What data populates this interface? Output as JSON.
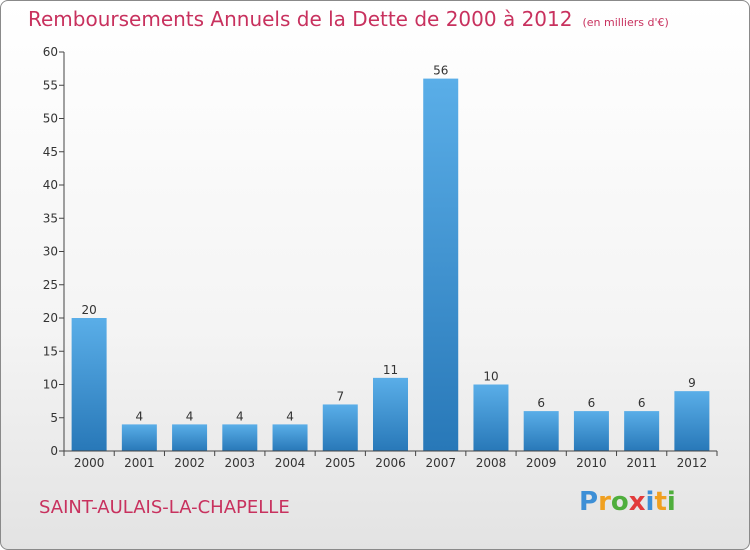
{
  "chart_data": {
    "type": "bar",
    "title": "Remboursements Annuels de la Dette de 2000 à 2012",
    "unit_note": "(en milliers d'€)",
    "categories": [
      "2000",
      "2001",
      "2002",
      "2003",
      "2004",
      "2005",
      "2006",
      "2007",
      "2008",
      "2009",
      "2010",
      "2011",
      "2012"
    ],
    "values": [
      20,
      4,
      4,
      4,
      4,
      7,
      11,
      56,
      10,
      6,
      6,
      6,
      9
    ],
    "ylim": [
      0,
      60
    ],
    "yticks": [
      0,
      5,
      10,
      15,
      20,
      25,
      30,
      35,
      40,
      45,
      50,
      55,
      60
    ],
    "xlabel": "",
    "ylabel": "",
    "grid": false
  },
  "commune": "SAINT-AULAIS-LA-CHAPELLE",
  "logo": {
    "letters": [
      "P",
      "r",
      "o",
      "x",
      "i",
      "t",
      "i"
    ],
    "colors": [
      "#3d8fd6",
      "#f0a020",
      "#4fae3c",
      "#e23b3b",
      "#3d8fd6",
      "#f0a020",
      "#4fae3c"
    ]
  },
  "colors": {
    "accent": "#c8315e",
    "bar_top": "#5aaee8",
    "bar_bottom": "#2878b8",
    "axis": "#444444"
  }
}
